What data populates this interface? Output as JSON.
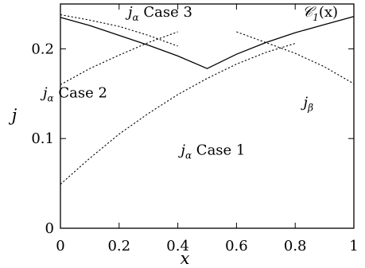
{
  "chart_data": {
    "type": "line",
    "title": "",
    "xlabel": "x",
    "ylabel": "j",
    "xlim": [
      0,
      1
    ],
    "ylim": [
      0,
      0.25
    ],
    "xticks": [
      "0",
      "0.2",
      "0.4",
      "0.6",
      "0.8",
      "1"
    ],
    "yticks": [
      "0",
      "0.1",
      "0.2"
    ],
    "grid": false,
    "legend": "none",
    "series": [
      {
        "style": "solid",
        "x": [
          0,
          0.1,
          0.2,
          0.3,
          0.4,
          0.5,
          0.6,
          0.7,
          0.8,
          0.9,
          1.0
        ],
        "values": [
          0.235,
          0.226,
          0.215,
          0.204,
          0.192,
          0.178,
          0.194,
          0.207,
          0.218,
          0.227,
          0.236
        ]
      },
      {
        "style": "dotted",
        "x": [
          0,
          0.1,
          0.2,
          0.3,
          0.4,
          0.5,
          0.6,
          0.7,
          0.8
        ],
        "values": [
          0.049,
          0.078,
          0.105,
          0.128,
          0.149,
          0.167,
          0.183,
          0.196,
          0.206
        ]
      },
      {
        "style": "dotted",
        "x": [
          0,
          0.1,
          0.2,
          0.3,
          0.4
        ],
        "values": [
          0.16,
          0.178,
          0.193,
          0.207,
          0.219
        ]
      },
      {
        "style": "dotted",
        "x": [
          0,
          0.1,
          0.2,
          0.3,
          0.4
        ],
        "values": [
          0.238,
          0.232,
          0.225,
          0.215,
          0.203
        ]
      },
      {
        "style": "dotted",
        "x": [
          0.6,
          0.7,
          0.8,
          0.9,
          1.0
        ],
        "values": [
          0.219,
          0.207,
          0.195,
          0.18,
          0.161
        ]
      }
    ],
    "annotations": [
      {
        "base": "j",
        "sub": "α",
        "suffix": " Case 1",
        "x": 0.52,
        "y": 0.082
      },
      {
        "base": "j",
        "sub": "α",
        "suffix": " Case 2",
        "x": 0.05,
        "y": 0.146
      },
      {
        "base": "j",
        "sub": "α",
        "suffix": " Case 3",
        "x": 0.34,
        "y": 0.236
      },
      {
        "base": "j",
        "sub": "β",
        "suffix": "",
        "x": 0.845,
        "y": 0.135
      },
      {
        "base": "𝒞",
        "sub": "1",
        "suffix": "(x)",
        "x": 0.885,
        "y": 0.236
      }
    ]
  }
}
